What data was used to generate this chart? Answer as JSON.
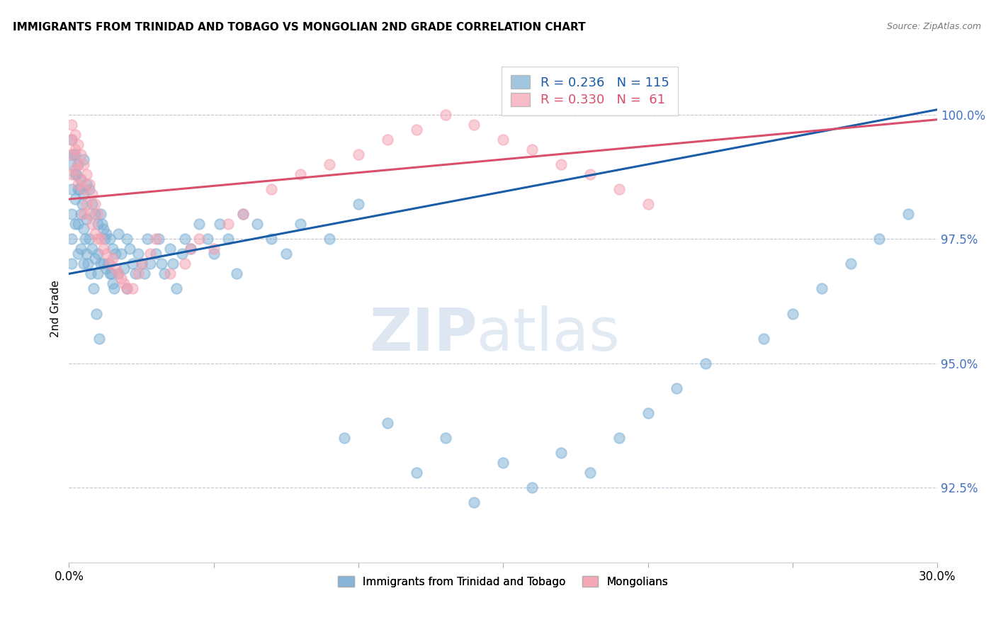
{
  "title": "IMMIGRANTS FROM TRINIDAD AND TOBAGO VS MONGOLIAN 2ND GRADE CORRELATION CHART",
  "source": "Source: ZipAtlas.com",
  "ylabel": "2nd Grade",
  "yticks": [
    92.5,
    95.0,
    97.5,
    100.0
  ],
  "ytick_labels": [
    "92.5%",
    "95.0%",
    "97.5%",
    "100.0%"
  ],
  "xmin": 0.0,
  "xmax": 30.0,
  "ymin": 91.0,
  "ymax": 101.2,
  "blue_R": 0.236,
  "blue_N": 115,
  "pink_R": 0.33,
  "pink_N": 61,
  "blue_color": "#7bafd4",
  "pink_color": "#f4a0b0",
  "blue_line_color": "#1a5ca8",
  "pink_line_color": "#d94f6b",
  "legend_blue_label": "Immigrants from Trinidad and Tobago",
  "legend_pink_label": "Mongolians",
  "watermark_zip": "ZIP",
  "watermark_atlas": "atlas",
  "blue_x": [
    0.1,
    0.1,
    0.1,
    0.1,
    0.1,
    0.1,
    0.2,
    0.2,
    0.2,
    0.2,
    0.3,
    0.3,
    0.3,
    0.3,
    0.4,
    0.4,
    0.4,
    0.5,
    0.5,
    0.5,
    0.5,
    0.6,
    0.6,
    0.6,
    0.7,
    0.7,
    0.8,
    0.8,
    0.9,
    0.9,
    1.0,
    1.0,
    1.0,
    1.1,
    1.1,
    1.2,
    1.2,
    1.3,
    1.3,
    1.4,
    1.4,
    1.5,
    1.5,
    1.6,
    1.7,
    1.7,
    1.8,
    1.9,
    2.0,
    2.0,
    2.1,
    2.2,
    2.3,
    2.4,
    2.5,
    2.6,
    2.7,
    2.8,
    3.0,
    3.1,
    3.2,
    3.3,
    3.5,
    3.6,
    3.7,
    3.9,
    4.0,
    4.2,
    4.5,
    4.8,
    5.0,
    5.2,
    5.5,
    5.8,
    6.0,
    6.5,
    7.0,
    7.5,
    8.0,
    9.0,
    9.5,
    10.0,
    11.0,
    12.0,
    13.0,
    14.0,
    15.0,
    16.0,
    17.0,
    18.0,
    19.0,
    20.0,
    21.0,
    22.0,
    24.0,
    25.0,
    26.0,
    27.0,
    28.0,
    29.0,
    0.15,
    0.25,
    0.35,
    0.45,
    0.55,
    0.65,
    0.75,
    0.85,
    0.95,
    1.05,
    1.15,
    1.25,
    1.35,
    1.45,
    1.55
  ],
  "blue_y": [
    99.5,
    99.0,
    98.5,
    98.0,
    97.5,
    97.0,
    99.2,
    98.8,
    98.3,
    97.8,
    99.0,
    98.5,
    97.8,
    97.2,
    98.7,
    98.0,
    97.3,
    99.1,
    98.4,
    97.7,
    97.0,
    98.6,
    97.9,
    97.2,
    98.5,
    97.5,
    98.2,
    97.3,
    98.0,
    97.1,
    97.8,
    97.2,
    96.8,
    98.0,
    97.0,
    97.7,
    97.0,
    97.6,
    96.9,
    97.5,
    96.8,
    97.3,
    96.6,
    97.2,
    97.6,
    96.8,
    97.2,
    96.9,
    97.5,
    96.5,
    97.3,
    97.0,
    96.8,
    97.2,
    97.0,
    96.8,
    97.5,
    97.0,
    97.2,
    97.5,
    97.0,
    96.8,
    97.3,
    97.0,
    96.5,
    97.2,
    97.5,
    97.3,
    97.8,
    97.5,
    97.2,
    97.8,
    97.5,
    96.8,
    98.0,
    97.8,
    97.5,
    97.2,
    97.8,
    97.5,
    93.5,
    98.2,
    93.8,
    92.8,
    93.5,
    92.2,
    93.0,
    92.5,
    93.2,
    92.8,
    93.5,
    94.0,
    94.5,
    95.0,
    95.5,
    96.0,
    96.5,
    97.0,
    97.5,
    98.0,
    99.2,
    98.8,
    98.5,
    98.2,
    97.5,
    97.0,
    96.8,
    96.5,
    96.0,
    95.5,
    97.8,
    97.5,
    97.0,
    96.8,
    96.5
  ],
  "pink_x": [
    0.1,
    0.1,
    0.1,
    0.1,
    0.2,
    0.2,
    0.2,
    0.3,
    0.3,
    0.3,
    0.4,
    0.4,
    0.5,
    0.5,
    0.5,
    0.6,
    0.6,
    0.7,
    0.7,
    0.8,
    0.8,
    0.9,
    0.9,
    1.0,
    1.0,
    1.1,
    1.2,
    1.3,
    1.4,
    1.5,
    1.6,
    1.7,
    1.8,
    1.9,
    2.0,
    2.2,
    2.4,
    2.5,
    2.8,
    3.0,
    3.5,
    4.0,
    4.5,
    5.0,
    5.5,
    6.0,
    7.0,
    8.0,
    9.0,
    10.0,
    11.0,
    12.0,
    13.0,
    14.0,
    15.0,
    16.0,
    17.0,
    18.0,
    19.0,
    20.0,
    4.2
  ],
  "pink_y": [
    99.8,
    99.5,
    99.2,
    98.8,
    99.6,
    99.3,
    98.9,
    99.4,
    99.0,
    98.6,
    99.2,
    98.7,
    99.0,
    98.5,
    98.0,
    98.8,
    98.2,
    98.6,
    98.0,
    98.4,
    97.8,
    98.2,
    97.6,
    98.0,
    97.5,
    97.5,
    97.3,
    97.2,
    97.0,
    97.1,
    96.9,
    96.8,
    96.7,
    96.6,
    96.5,
    96.5,
    96.8,
    97.0,
    97.2,
    97.5,
    96.8,
    97.0,
    97.5,
    97.3,
    97.8,
    98.0,
    98.5,
    98.8,
    99.0,
    99.2,
    99.5,
    99.7,
    100.0,
    99.8,
    99.5,
    99.3,
    99.0,
    98.8,
    98.5,
    98.2,
    97.3
  ],
  "blue_trend_x0": 0.0,
  "blue_trend_x1": 30.0,
  "blue_trend_y0": 96.8,
  "blue_trend_y1": 100.1,
  "pink_trend_x0": 0.0,
  "pink_trend_x1": 30.0,
  "pink_trend_y0": 98.3,
  "pink_trend_y1": 99.9
}
